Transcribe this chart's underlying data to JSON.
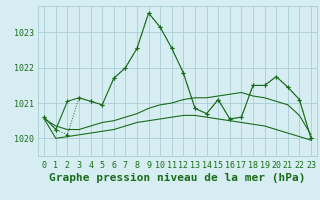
{
  "title": "Graphe pression niveau de la mer (hPa)",
  "bg_color": "#d6eef2",
  "grid_color": "#aacdd6",
  "line_color": "#1a6b1a",
  "xlim": [
    -0.5,
    23.5
  ],
  "ylim": [
    1019.5,
    1023.75
  ],
  "yticks": [
    1020,
    1021,
    1022,
    1023
  ],
  "xticks": [
    0,
    1,
    2,
    3,
    4,
    5,
    6,
    7,
    8,
    9,
    10,
    11,
    12,
    13,
    14,
    15,
    16,
    17,
    18,
    19,
    20,
    21,
    22,
    23
  ],
  "series1_y": [
    1020.6,
    1020.25,
    1021.05,
    1021.15,
    1021.05,
    1020.95,
    1021.7,
    1022.0,
    1022.55,
    1023.55,
    1023.15,
    1022.55,
    1021.85,
    1020.85,
    1020.7,
    1021.1,
    1020.55,
    1020.6,
    1021.5,
    1021.5,
    1021.75,
    1021.45,
    1021.1,
    1020.0
  ],
  "series2_y": [
    1020.55,
    1020.35,
    1020.25,
    1020.25,
    1020.35,
    1020.45,
    1020.5,
    1020.6,
    1020.7,
    1020.85,
    1020.95,
    1021.0,
    1021.1,
    1021.15,
    1021.15,
    1021.2,
    1021.25,
    1021.3,
    1021.2,
    1021.15,
    1021.05,
    1020.95,
    1020.65,
    1020.1
  ],
  "series3_y": [
    1020.6,
    1020.25,
    1020.1,
    1021.15,
    1021.05,
    1020.95,
    1021.7,
    1022.0,
    1022.55,
    1023.55,
    1023.15,
    1022.55,
    1021.85,
    1020.85,
    1020.7,
    1021.1,
    1020.55,
    1020.6,
    1021.5,
    1021.5,
    1021.75,
    1021.45,
    1021.1,
    1020.0
  ],
  "series4_y": [
    1020.55,
    1020.0,
    1020.05,
    1020.1,
    1020.15,
    1020.2,
    1020.25,
    1020.35,
    1020.45,
    1020.5,
    1020.55,
    1020.6,
    1020.65,
    1020.65,
    1020.6,
    1020.55,
    1020.5,
    1020.45,
    1020.4,
    1020.35,
    1020.25,
    1020.15,
    1020.05,
    1019.95
  ],
  "title_fontsize": 8,
  "tick_fontsize": 6
}
